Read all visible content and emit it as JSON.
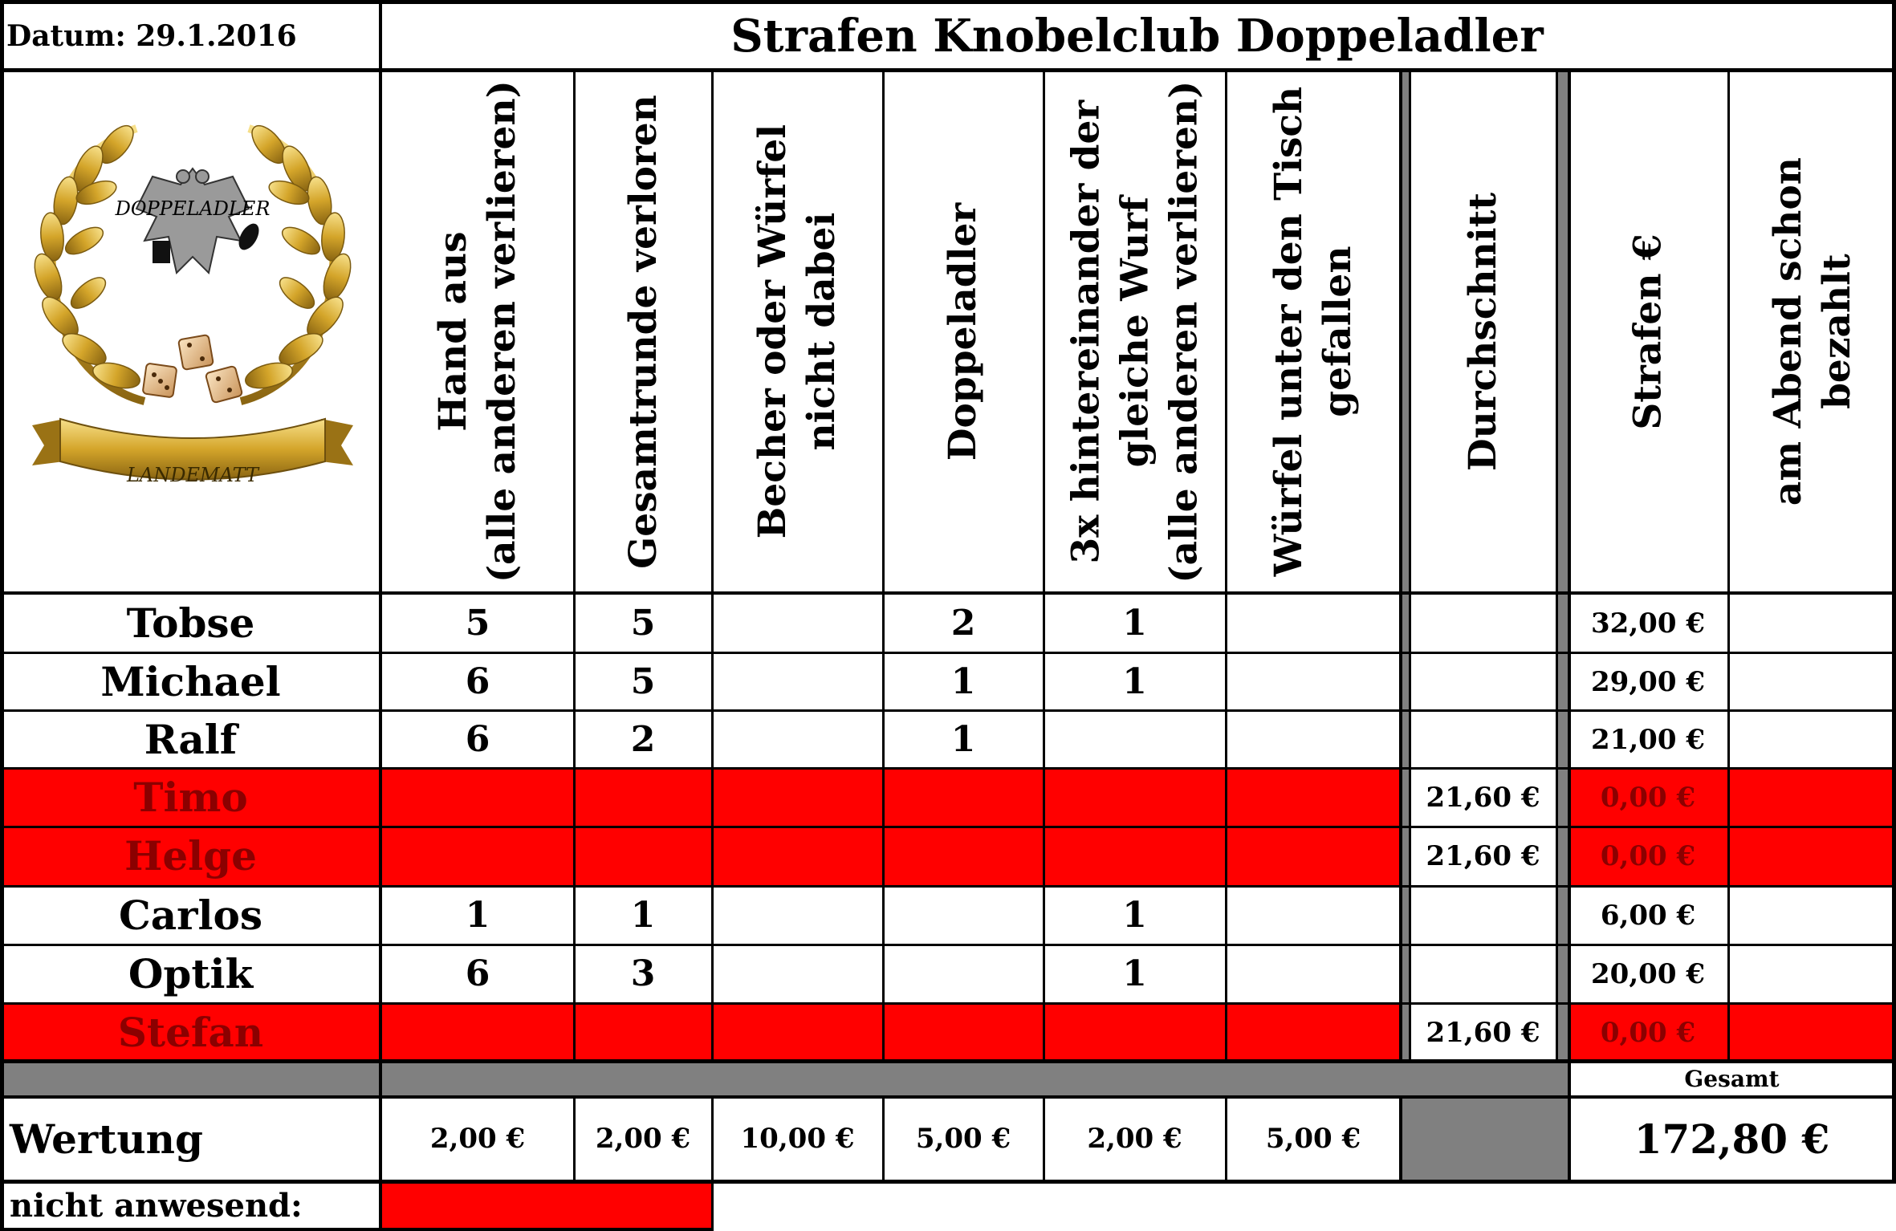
{
  "date_label": "Datum: 29.1.2016",
  "title": "Strafen Knobelclub Doppeladler",
  "logo": {
    "top_text": "DOPPELADLER",
    "banner_text": "LANDEMATT"
  },
  "columns": [
    {
      "key": "hand_aus",
      "lines": [
        "Hand aus",
        "(alle anderen verlieren)"
      ]
    },
    {
      "key": "gesamtrunde",
      "lines": [
        "Gesamtrunde verloren"
      ]
    },
    {
      "key": "becher",
      "lines": [
        "Becher oder Würfel",
        "nicht dabei"
      ]
    },
    {
      "key": "doppeladler",
      "lines": [
        "Doppeladler"
      ]
    },
    {
      "key": "dreifach",
      "lines": [
        "3x hintereinander der",
        "gleiche Wurf",
        "(alle anderen verlieren)"
      ]
    },
    {
      "key": "wuerfel",
      "lines": [
        "Würfel unter den Tisch",
        "gefallen"
      ]
    },
    {
      "key": "durchschnitt",
      "lines": [
        "Durchschnitt"
      ]
    },
    {
      "key": "strafen",
      "lines": [
        "Strafen €"
      ]
    },
    {
      "key": "bezahlt",
      "lines": [
        "am Abend schon",
        "bezahlt"
      ]
    }
  ],
  "rows": [
    {
      "name": "Tobse",
      "absent": false,
      "values": [
        "5",
        "5",
        "",
        "2",
        "1",
        "",
        "",
        "32,00 €",
        ""
      ]
    },
    {
      "name": "Michael",
      "absent": false,
      "values": [
        "6",
        "5",
        "",
        "1",
        "1",
        "",
        "",
        "29,00 €",
        ""
      ]
    },
    {
      "name": "Ralf",
      "absent": false,
      "values": [
        "6",
        "2",
        "",
        "1",
        "",
        "",
        "",
        "21,00 €",
        ""
      ]
    },
    {
      "name": "Timo",
      "absent": true,
      "values": [
        "",
        "",
        "",
        "",
        "",
        "",
        "21,60 €",
        "0,00 €",
        ""
      ]
    },
    {
      "name": "Helge",
      "absent": true,
      "values": [
        "",
        "",
        "",
        "",
        "",
        "",
        "21,60 €",
        "0,00 €",
        ""
      ]
    },
    {
      "name": "Carlos",
      "absent": false,
      "values": [
        "1",
        "1",
        "",
        "",
        "1",
        "",
        "",
        "6,00 €",
        ""
      ]
    },
    {
      "name": "Optik",
      "absent": false,
      "values": [
        "6",
        "3",
        "",
        "",
        "1",
        "",
        "",
        "20,00 €",
        ""
      ]
    },
    {
      "name": "Stefan",
      "absent": true,
      "values": [
        "",
        "",
        "",
        "",
        "",
        "",
        "21,60 €",
        "0,00 €",
        ""
      ]
    }
  ],
  "gesamt_label": "Gesamt",
  "wertung": {
    "label": "Wertung",
    "values": [
      "2,00 €",
      "2,00 €",
      "10,00 €",
      "5,00 €",
      "2,00 €",
      "5,00 €"
    ],
    "total": "172,80 €"
  },
  "absent_label": "nicht anwesend:",
  "colors": {
    "absent_row": "#ff0000",
    "absent_text": "#8b0000",
    "separator": "#808080"
  }
}
